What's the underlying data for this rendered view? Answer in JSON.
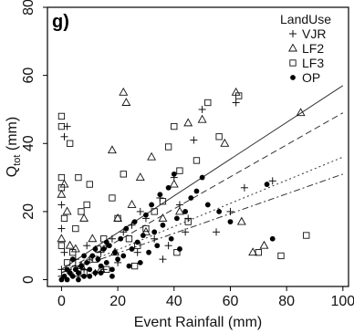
{
  "chart_data": {
    "type": "scatter",
    "panel_label": "g)",
    "xlabel": "Event Rainfall (mm)",
    "ylabel_main": "Q",
    "ylabel_sub": "tot",
    "ylabel_unit": " (mm)",
    "xlim": [
      -5,
      102
    ],
    "ylim": [
      -2,
      80
    ],
    "x_ticks": [
      0,
      20,
      40,
      60,
      80,
      100
    ],
    "y_ticks": [
      0,
      20,
      40,
      60,
      80
    ],
    "legend_title": "LandUse",
    "legend_position": "top-right",
    "series": [
      {
        "name": "VJR",
        "marker": "plus",
        "line_style": "solid",
        "fit": {
          "x": [
            0,
            100
          ],
          "y": [
            3,
            57
          ]
        },
        "points": [
          [
            0,
            1
          ],
          [
            0,
            3
          ],
          [
            1,
            42
          ],
          [
            2,
            45
          ],
          [
            0,
            22
          ],
          [
            0,
            15
          ],
          [
            1,
            8
          ],
          [
            3,
            2
          ],
          [
            5,
            4
          ],
          [
            6,
            1
          ],
          [
            8,
            3
          ],
          [
            10,
            6
          ],
          [
            12,
            2
          ],
          [
            14,
            8
          ],
          [
            16,
            10
          ],
          [
            18,
            12
          ],
          [
            20,
            5
          ],
          [
            22,
            14
          ],
          [
            25,
            16
          ],
          [
            28,
            20
          ],
          [
            30,
            18
          ],
          [
            33,
            12
          ],
          [
            35,
            24
          ],
          [
            38,
            10
          ],
          [
            40,
            30
          ],
          [
            42,
            22
          ],
          [
            45,
            18
          ],
          [
            47,
            41
          ],
          [
            50,
            50
          ],
          [
            62,
            52
          ],
          [
            65,
            27
          ],
          [
            75,
            29
          ],
          [
            60,
            20
          ],
          [
            55,
            14
          ],
          [
            5,
            6
          ],
          [
            9,
            10
          ],
          [
            15,
            3
          ],
          [
            27,
            8
          ],
          [
            36,
            6
          ],
          [
            44,
            14
          ]
        ]
      },
      {
        "name": "LF2",
        "marker": "triangle",
        "line_style": "dashed",
        "fit": {
          "x": [
            0,
            100
          ],
          "y": [
            2,
            49
          ]
        },
        "points": [
          [
            0,
            25
          ],
          [
            1,
            28
          ],
          [
            2,
            20
          ],
          [
            0,
            12
          ],
          [
            5,
            9
          ],
          [
            8,
            18
          ],
          [
            11,
            12
          ],
          [
            14,
            3
          ],
          [
            18,
            38
          ],
          [
            22,
            55
          ],
          [
            23,
            52
          ],
          [
            25,
            22
          ],
          [
            28,
            30
          ],
          [
            32,
            36
          ],
          [
            36,
            18
          ],
          [
            40,
            28
          ],
          [
            45,
            46
          ],
          [
            50,
            47
          ],
          [
            58,
            40
          ],
          [
            62,
            55
          ],
          [
            64,
            17
          ],
          [
            68,
            8
          ],
          [
            72,
            10
          ],
          [
            85,
            49
          ],
          [
            3,
            10
          ],
          [
            7,
            4
          ],
          [
            19,
            8
          ],
          [
            30,
            14
          ],
          [
            42,
            20
          ],
          [
            20,
            18
          ]
        ]
      },
      {
        "name": "LF3",
        "marker": "square",
        "line_style": "dotted",
        "fit": {
          "x": [
            0,
            100
          ],
          "y": [
            2,
            36
          ]
        },
        "points": [
          [
            0,
            48
          ],
          [
            0,
            45
          ],
          [
            0,
            30
          ],
          [
            0,
            27
          ],
          [
            1,
            18
          ],
          [
            0,
            10
          ],
          [
            2,
            5
          ],
          [
            4,
            8
          ],
          [
            5,
            15
          ],
          [
            7,
            20
          ],
          [
            9,
            22
          ],
          [
            10,
            28
          ],
          [
            12,
            6
          ],
          [
            15,
            12
          ],
          [
            18,
            24
          ],
          [
            20,
            18
          ],
          [
            22,
            31
          ],
          [
            24,
            12
          ],
          [
            27,
            10
          ],
          [
            30,
            15
          ],
          [
            33,
            20
          ],
          [
            36,
            23
          ],
          [
            38,
            39
          ],
          [
            40,
            45
          ],
          [
            42,
            32
          ],
          [
            45,
            17
          ],
          [
            48,
            35
          ],
          [
            52,
            52
          ],
          [
            56,
            42
          ],
          [
            63,
            54
          ],
          [
            70,
            8
          ],
          [
            78,
            7
          ],
          [
            87,
            13
          ],
          [
            16,
            3
          ],
          [
            26,
            4
          ],
          [
            41,
            8
          ],
          [
            8,
            2
          ],
          [
            6,
            30
          ],
          [
            3,
            40
          ],
          [
            13,
            9
          ]
        ]
      },
      {
        "name": "OP",
        "marker": "circle",
        "line_style": "dashdot",
        "fit": {
          "x": [
            0,
            100
          ],
          "y": [
            2,
            31
          ]
        },
        "points": [
          [
            0,
            0
          ],
          [
            1,
            1
          ],
          [
            2,
            0
          ],
          [
            3,
            2
          ],
          [
            4,
            1
          ],
          [
            5,
            3
          ],
          [
            6,
            2
          ],
          [
            7,
            4
          ],
          [
            8,
            1
          ],
          [
            9,
            5
          ],
          [
            10,
            3
          ],
          [
            11,
            7
          ],
          [
            12,
            2
          ],
          [
            13,
            6
          ],
          [
            14,
            4
          ],
          [
            15,
            9
          ],
          [
            16,
            5
          ],
          [
            17,
            10
          ],
          [
            18,
            3
          ],
          [
            19,
            8
          ],
          [
            20,
            6
          ],
          [
            21,
            12
          ],
          [
            22,
            7
          ],
          [
            23,
            15
          ],
          [
            24,
            4
          ],
          [
            25,
            9
          ],
          [
            26,
            17
          ],
          [
            27,
            11
          ],
          [
            28,
            5
          ],
          [
            29,
            13
          ],
          [
            30,
            19
          ],
          [
            31,
            8
          ],
          [
            32,
            22
          ],
          [
            33,
            14
          ],
          [
            34,
            10
          ],
          [
            35,
            25
          ],
          [
            36,
            16
          ],
          [
            38,
            27
          ],
          [
            39,
            12
          ],
          [
            40,
            31
          ],
          [
            41,
            18
          ],
          [
            42,
            9
          ],
          [
            44,
            20
          ],
          [
            46,
            24
          ],
          [
            48,
            26
          ],
          [
            50,
            30
          ],
          [
            52,
            22
          ],
          [
            56,
            20
          ],
          [
            60,
            17
          ],
          [
            73,
            28
          ],
          [
            75,
            12
          ],
          [
            2,
            3
          ],
          [
            4,
            6
          ],
          [
            6,
            0
          ],
          [
            8,
            7
          ],
          [
            10,
            1
          ],
          [
            12,
            9
          ],
          [
            14,
            2
          ],
          [
            16,
            11
          ],
          [
            18,
            1
          ]
        ]
      }
    ]
  }
}
